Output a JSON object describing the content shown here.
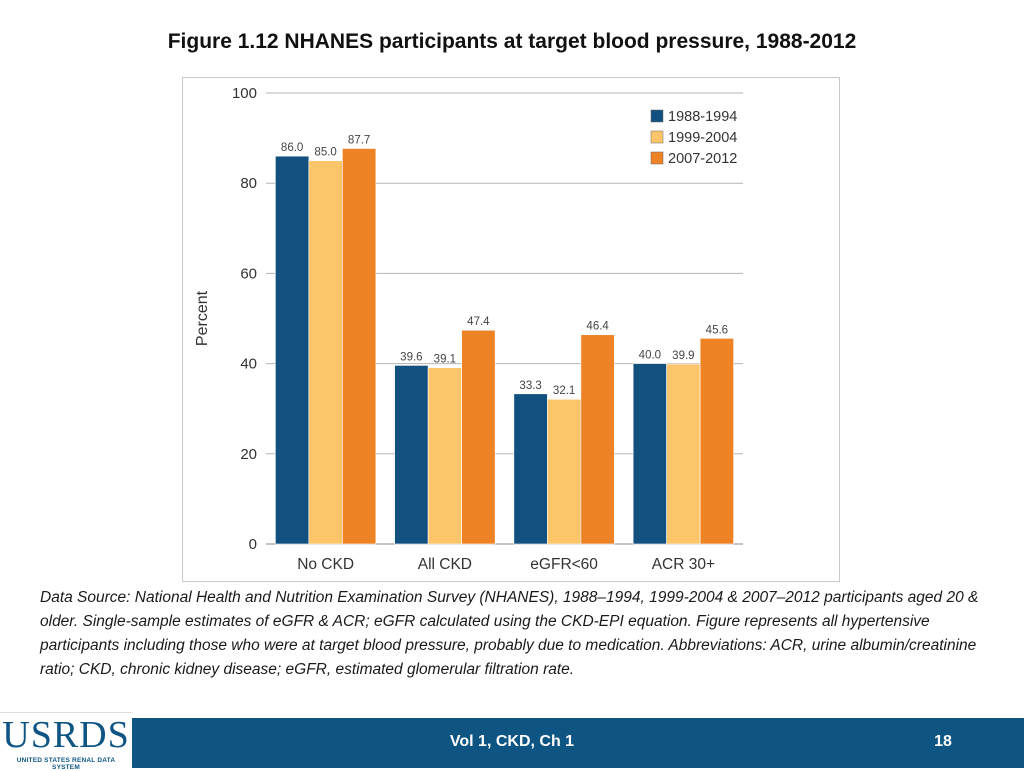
{
  "slide": {
    "title": "Figure 1.12 NHANES participants at target blood pressure, 1988-2012",
    "footnote": "Data Source: National Health and Nutrition Examination Survey (NHANES), 1988–1994, 1999-2004 & 2007–2012 participants aged 20 & older. Single-sample estimates of eGFR & ACR; eGFR calculated using the CKD-EPI equation. Figure represents all hypertensive participants including those who were at target blood pressure, probably due to medication. Abbreviations: ACR, urine albumin/creatinine ratio; CKD, chronic kidney disease; eGFR, estimated glomerular filtration rate.",
    "footer_label": "Vol 1, CKD, Ch 1",
    "page_number": "18",
    "logo_text": "USRDS",
    "logo_subtext": "UNITED STATES RENAL DATA SYSTEM"
  },
  "chart_data": {
    "type": "bar",
    "title": "",
    "xlabel": "",
    "ylabel": "Percent",
    "ylim": [
      0,
      100
    ],
    "yticks": [
      0,
      20,
      40,
      60,
      80,
      100
    ],
    "categories": [
      "No CKD",
      "All CKD",
      "eGFR<60",
      "ACR 30+"
    ],
    "series": [
      {
        "name": "1988-1994",
        "color": "#11507f",
        "values": [
          86.0,
          39.6,
          33.3,
          40.0
        ],
        "labels": [
          "86.0",
          "39.6",
          "33.3",
          "40.0"
        ]
      },
      {
        "name": "1999-2004",
        "color": "#fdc56a",
        "values": [
          85.0,
          39.1,
          32.1,
          39.9
        ],
        "labels": [
          "85.0",
          "39.1",
          "32.1",
          "39.9"
        ]
      },
      {
        "name": "2007-2012",
        "color": "#ee8326",
        "values": [
          87.7,
          47.4,
          46.4,
          45.6
        ],
        "labels": [
          "87.7",
          "47.4",
          "46.4",
          "45.6"
        ]
      }
    ],
    "legend_position": "top-right",
    "grid": true
  }
}
